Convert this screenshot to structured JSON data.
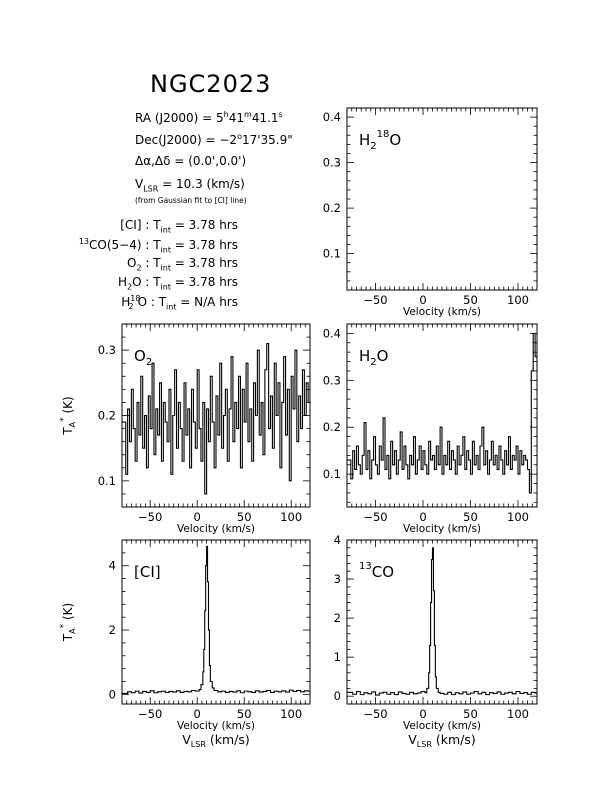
{
  "title": "NGC2023",
  "info": {
    "ra_label": "RA (J2000) =",
    "ra_h": "5",
    "ra_h_unit": "h",
    "ra_m": "41",
    "ra_m_unit": "m",
    "ra_s": "41.1",
    "ra_s_unit": "s",
    "dec_label": "Dec(J2000) =",
    "dec_d": "−2",
    "dec_d_unit": "o",
    "dec_rest": "17'35.9\"",
    "offset_label": "Δα,Δδ =",
    "offset_value": "(0.0',0.0')",
    "vlsr_label": "V",
    "vlsr_sub": "LSR",
    "vlsr_value": "= 10.3 (km/s)",
    "vlsr_note": "(from Gaussian fit to [CI] line)",
    "tint": [
      {
        "line_pre": "[CI]",
        "line_sup": "",
        "line_sub": "",
        "line_post": "",
        "value": "3.78 hrs"
      },
      {
        "line_pre": "",
        "line_sup": "13",
        "line_sub": "",
        "line_post": "CO(5−4)",
        "value": "3.78 hrs"
      },
      {
        "line_pre": "O",
        "line_sup": "",
        "line_sub": "2",
        "line_post": "",
        "value": "3.78 hrs"
      },
      {
        "line_pre": "H",
        "line_sup": "",
        "line_sub": "2",
        "line_post": "O",
        "value": "3.78 hrs"
      },
      {
        "line_pre": "H",
        "line_sup": "18",
        "line_sub": "2",
        "line_post": "O",
        "value": "N/A hrs"
      }
    ],
    "tint_label": "T",
    "tint_sub": "int"
  },
  "chart_data": [
    {
      "id": "h218o",
      "type": "line",
      "title": "H218O",
      "label_parts": {
        "base": "H",
        "sub": "2",
        "sup": "18",
        "tail": "O"
      },
      "xlabel": "Velocity (km/s)",
      "xlabel2": "",
      "ylabel": "",
      "xlim": [
        -80,
        120
      ],
      "ylim": [
        0.02,
        0.42
      ],
      "xticks": [
        -50,
        0,
        50,
        100
      ],
      "yticks": [
        0.1,
        0.2,
        0.3,
        0.4
      ],
      "ytick_labels": [
        "0.1",
        "0.2",
        "0.3",
        "0.4"
      ],
      "series": []
    },
    {
      "id": "o2",
      "type": "line",
      "title": "O2",
      "label_parts": {
        "base": "O",
        "sub": "2",
        "sup": "",
        "tail": ""
      },
      "xlabel": "Velocity (km/s)",
      "xlabel2": "",
      "ylabel": "T_A* (K)",
      "xlim": [
        -80,
        120
      ],
      "ylim": [
        0.06,
        0.34
      ],
      "xticks": [
        -50,
        0,
        50,
        100
      ],
      "yticks": [
        0.1,
        0.2,
        0.3
      ],
      "ytick_labels": [
        "0.1",
        "0.2",
        "0.3"
      ],
      "series": [
        {
          "x": [
            -78,
            -76,
            -74,
            -72,
            -70,
            -68,
            -66,
            -64,
            -62,
            -60,
            -58,
            -56,
            -54,
            -52,
            -50,
            -48,
            -46,
            -44,
            -42,
            -40,
            -38,
            -36,
            -34,
            -32,
            -30,
            -28,
            -26,
            -24,
            -22,
            -20,
            -18,
            -16,
            -14,
            -12,
            -10,
            -8,
            -6,
            -4,
            -2,
            0,
            2,
            4,
            6,
            8,
            10,
            12,
            14,
            16,
            18,
            20,
            22,
            24,
            26,
            28,
            30,
            32,
            34,
            36,
            38,
            40,
            42,
            44,
            46,
            48,
            50,
            52,
            54,
            56,
            58,
            60,
            62,
            64,
            66,
            68,
            70,
            72,
            74,
            76,
            78,
            80,
            82,
            84,
            86,
            88,
            90,
            92,
            94,
            96,
            98,
            100,
            102,
            104,
            106,
            108,
            110,
            112,
            114,
            116,
            118,
            120
          ],
          "values": [
            0.19,
            0.11,
            0.21,
            0.16,
            0.24,
            0.18,
            0.13,
            0.22,
            0.17,
            0.26,
            0.15,
            0.2,
            0.12,
            0.23,
            0.18,
            0.28,
            0.14,
            0.21,
            0.17,
            0.25,
            0.13,
            0.22,
            0.19,
            0.16,
            0.24,
            0.11,
            0.2,
            0.27,
            0.15,
            0.22,
            0.18,
            0.13,
            0.25,
            0.17,
            0.21,
            0.12,
            0.24,
            0.19,
            0.15,
            0.27,
            0.18,
            0.13,
            0.22,
            0.08,
            0.21,
            0.16,
            0.26,
            0.19,
            0.12,
            0.23,
            0.17,
            0.28,
            0.15,
            0.2,
            0.24,
            0.13,
            0.21,
            0.29,
            0.16,
            0.22,
            0.18,
            0.26,
            0.12,
            0.24,
            0.19,
            0.28,
            0.16,
            0.21,
            0.13,
            0.25,
            0.2,
            0.3,
            0.17,
            0.22,
            0.14,
            0.27,
            0.31,
            0.18,
            0.23,
            0.15,
            0.28,
            0.2,
            0.25,
            0.12,
            0.22,
            0.29,
            0.17,
            0.24,
            0.1,
            0.26,
            0.21,
            0.3,
            0.16,
            0.23,
            0.18,
            0.27,
            0.2,
            0.25,
            0.22,
            0.28
          ]
        }
      ]
    },
    {
      "id": "h2o",
      "type": "line",
      "title": "H2O",
      "label_parts": {
        "base": "H",
        "sub": "2",
        "sup": "",
        "tail": "O"
      },
      "xlabel": "Velocity (km/s)",
      "xlabel2": "",
      "ylabel": "",
      "xlim": [
        -80,
        120
      ],
      "ylim": [
        0.03,
        0.42
      ],
      "xticks": [
        -50,
        0,
        50,
        100
      ],
      "yticks": [
        0.1,
        0.2,
        0.3,
        0.4
      ],
      "ytick_labels": [
        "0.1",
        "0.2",
        "0.3",
        "0.4"
      ],
      "series": [
        {
          "x": [
            -78,
            -76,
            -74,
            -72,
            -70,
            -68,
            -66,
            -64,
            -62,
            -60,
            -58,
            -56,
            -54,
            -52,
            -50,
            -48,
            -46,
            -44,
            -42,
            -40,
            -38,
            -36,
            -34,
            -32,
            -30,
            -28,
            -26,
            -24,
            -22,
            -20,
            -18,
            -16,
            -14,
            -12,
            -10,
            -8,
            -6,
            -4,
            -2,
            0,
            2,
            4,
            6,
            8,
            10,
            12,
            14,
            16,
            18,
            20,
            22,
            24,
            26,
            28,
            30,
            32,
            34,
            36,
            38,
            40,
            42,
            44,
            46,
            48,
            50,
            52,
            54,
            56,
            58,
            60,
            62,
            64,
            66,
            68,
            70,
            72,
            74,
            76,
            78,
            80,
            82,
            84,
            86,
            88,
            90,
            92,
            94,
            96,
            98,
            100,
            102,
            104,
            106,
            108,
            110,
            112,
            114,
            116,
            118,
            120
          ],
          "values": [
            0.13,
            0.09,
            0.15,
            0.11,
            0.16,
            0.12,
            0.1,
            0.14,
            0.21,
            0.11,
            0.15,
            0.09,
            0.13,
            0.18,
            0.12,
            0.1,
            0.16,
            0.13,
            0.22,
            0.11,
            0.14,
            0.09,
            0.17,
            0.12,
            0.15,
            0.1,
            0.13,
            0.19,
            0.11,
            0.16,
            0.12,
            0.09,
            0.14,
            0.12,
            0.18,
            0.1,
            0.13,
            0.16,
            0.11,
            0.15,
            0.12,
            0.1,
            0.17,
            0.13,
            0.14,
            0.11,
            0.16,
            0.12,
            0.2,
            0.1,
            0.14,
            0.12,
            0.17,
            0.11,
            0.15,
            0.13,
            0.1,
            0.16,
            0.12,
            0.14,
            0.18,
            0.11,
            0.15,
            0.13,
            0.1,
            0.17,
            0.12,
            0.14,
            0.11,
            0.16,
            0.2,
            0.12,
            0.15,
            0.1,
            0.13,
            0.17,
            0.12,
            0.14,
            0.11,
            0.16,
            0.13,
            0.1,
            0.15,
            0.12,
            0.18,
            0.11,
            0.14,
            0.13,
            0.16,
            0.1,
            0.15,
            0.12,
            0.14,
            0.13,
            0.11,
            0.06,
            0.32,
            0.4,
            0.35,
            0.36
          ]
        }
      ]
    },
    {
      "id": "ci",
      "type": "line",
      "title": "[CI]",
      "label_parts": {
        "base": "[CI]",
        "sub": "",
        "sup": "",
        "tail": ""
      },
      "xlabel": "Velocity (km/s)",
      "xlabel2": "V_LSR (km/s)",
      "ylabel": "T_A* (K)",
      "xlim": [
        -80,
        120
      ],
      "ylim": [
        -0.3,
        4.8
      ],
      "xticks": [
        -50,
        0,
        50,
        100
      ],
      "yticks": [
        0,
        2,
        4
      ],
      "ytick_labels": [
        "0",
        "2",
        "4"
      ],
      "series": [
        {
          "x": [
            -78,
            -74,
            -70,
            -66,
            -62,
            -58,
            -54,
            -50,
            -46,
            -42,
            -38,
            -34,
            -30,
            -26,
            -22,
            -18,
            -14,
            -10,
            -6,
            -2,
            2,
            4,
            6,
            7,
            8,
            9,
            10,
            11,
            12,
            13,
            14,
            16,
            18,
            22,
            26,
            30,
            34,
            38,
            42,
            46,
            50,
            54,
            58,
            62,
            66,
            70,
            74,
            78,
            82,
            86,
            90,
            94,
            98,
            102,
            106,
            110,
            114,
            118
          ],
          "values": [
            0.03,
            0.08,
            0.05,
            0.1,
            0.04,
            0.09,
            0.06,
            0.11,
            0.05,
            0.08,
            0.1,
            0.06,
            0.09,
            0.07,
            0.11,
            0.06,
            0.09,
            0.08,
            0.12,
            0.1,
            0.15,
            0.3,
            0.7,
            1.4,
            2.6,
            4.0,
            4.6,
            3.5,
            2.0,
            0.9,
            0.4,
            0.2,
            0.12,
            0.08,
            0.1,
            0.06,
            0.09,
            0.07,
            0.11,
            0.05,
            0.1,
            0.08,
            0.06,
            0.11,
            0.07,
            0.09,
            0.12,
            0.06,
            0.1,
            0.08,
            0.11,
            0.07,
            0.13,
            0.09,
            0.12,
            0.08,
            0.11,
            0.1
          ]
        }
      ]
    },
    {
      "id": "co13",
      "type": "line",
      "title": "13CO",
      "label_parts": {
        "base": "",
        "sub": "",
        "sup": "13",
        "tail": "CO"
      },
      "xlabel": "Velocity (km/s)",
      "xlabel2": "V_LSR (km/s)",
      "ylabel": "",
      "xlim": [
        -80,
        120
      ],
      "ylim": [
        -0.2,
        4.0
      ],
      "xticks": [
        -50,
        0,
        50,
        100
      ],
      "yticks": [
        0,
        1,
        2,
        3,
        4
      ],
      "ytick_labels": [
        "0",
        "1",
        "2",
        "3",
        "4"
      ],
      "series": [
        {
          "x": [
            -78,
            -74,
            -70,
            -66,
            -62,
            -58,
            -54,
            -50,
            -46,
            -42,
            -38,
            -34,
            -30,
            -26,
            -22,
            -18,
            -14,
            -10,
            -6,
            -2,
            2,
            4,
            6,
            7,
            8,
            9,
            10,
            11,
            12,
            13,
            14,
            16,
            18,
            22,
            26,
            30,
            34,
            38,
            42,
            46,
            50,
            54,
            58,
            62,
            66,
            70,
            74,
            78,
            82,
            86,
            90,
            94,
            98,
            102,
            106,
            110,
            114,
            118
          ],
          "values": [
            0.1,
            0.05,
            0.12,
            0.04,
            0.09,
            0.06,
            0.11,
            0.03,
            0.08,
            0.1,
            0.05,
            0.09,
            0.04,
            0.11,
            0.07,
            0.05,
            0.1,
            0.06,
            0.08,
            0.12,
            0.09,
            0.2,
            0.6,
            1.3,
            2.4,
            3.5,
            3.8,
            2.7,
            1.3,
            0.5,
            0.2,
            0.1,
            0.07,
            0.05,
            0.1,
            0.04,
            0.09,
            0.06,
            0.11,
            0.05,
            0.08,
            0.12,
            0.06,
            0.1,
            0.04,
            0.09,
            0.07,
            0.11,
            0.05,
            0.08,
            0.1,
            0.06,
            0.12,
            0.07,
            0.09,
            0.05,
            0.1,
            0.08
          ]
        }
      ]
    }
  ]
}
